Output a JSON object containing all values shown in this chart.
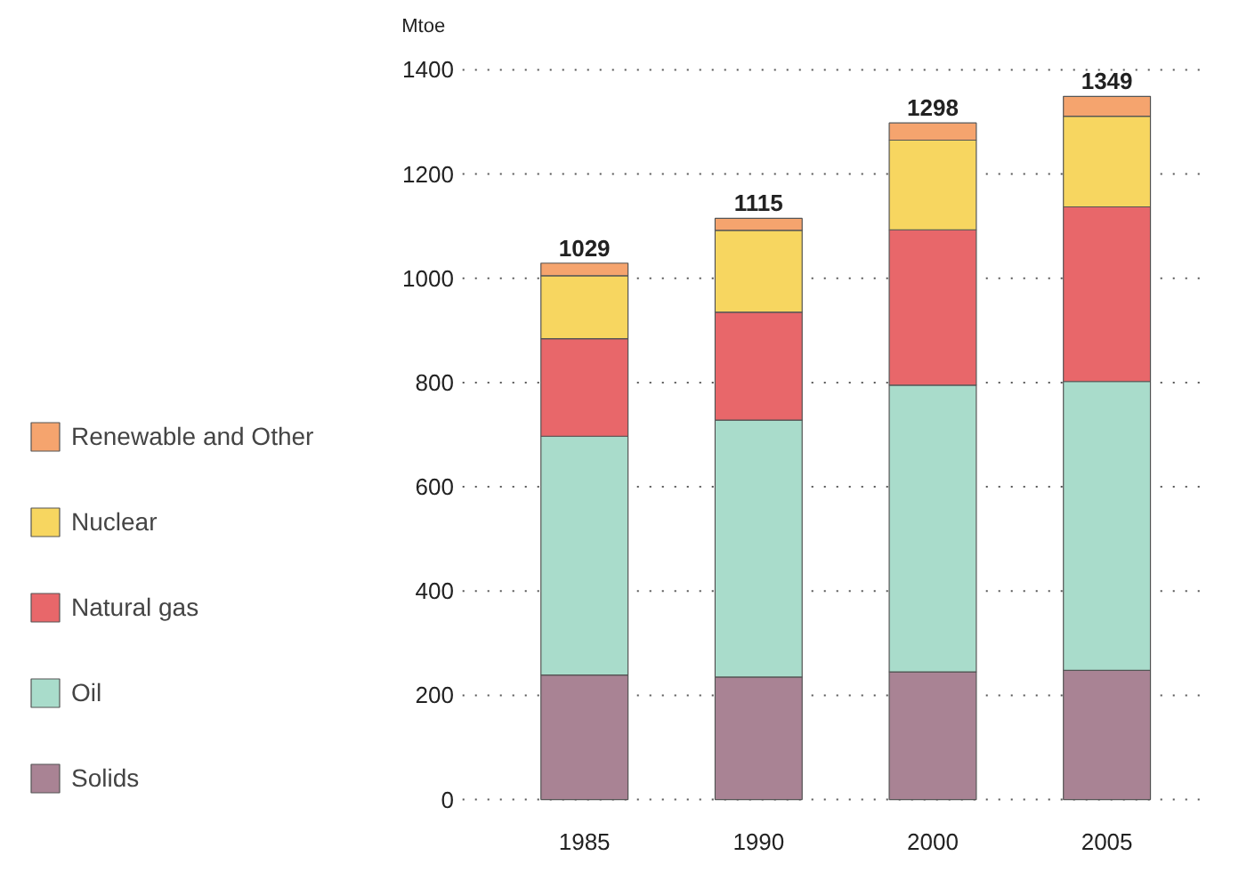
{
  "chart_data": {
    "type": "bar",
    "stacked": true,
    "ylabel": "Mtoe",
    "categories": [
      "1985",
      "1990",
      "2000",
      "2005"
    ],
    "series": [
      {
        "name": "Solids",
        "color": "#a98394",
        "values": [
          239,
          235,
          245,
          248
        ]
      },
      {
        "name": "Oil",
        "color": "#a9dccb",
        "values": [
          458,
          493,
          550,
          554
        ]
      },
      {
        "name": "Natural gas",
        "color": "#e8676a",
        "values": [
          187,
          207,
          298,
          335
        ]
      },
      {
        "name": "Nuclear",
        "color": "#f7d660",
        "values": [
          121,
          157,
          172,
          174
        ]
      },
      {
        "name": "Renewable and Other",
        "color": "#f5a46e",
        "values": [
          24,
          23,
          33,
          38
        ]
      }
    ],
    "totals": [
      "1029",
      "1115",
      "1298",
      "1349"
    ],
    "ylim": [
      0,
      1400
    ],
    "yticks": [
      0,
      200,
      400,
      600,
      800,
      1000,
      1200,
      1400
    ],
    "grid": "y",
    "legend": "left"
  }
}
